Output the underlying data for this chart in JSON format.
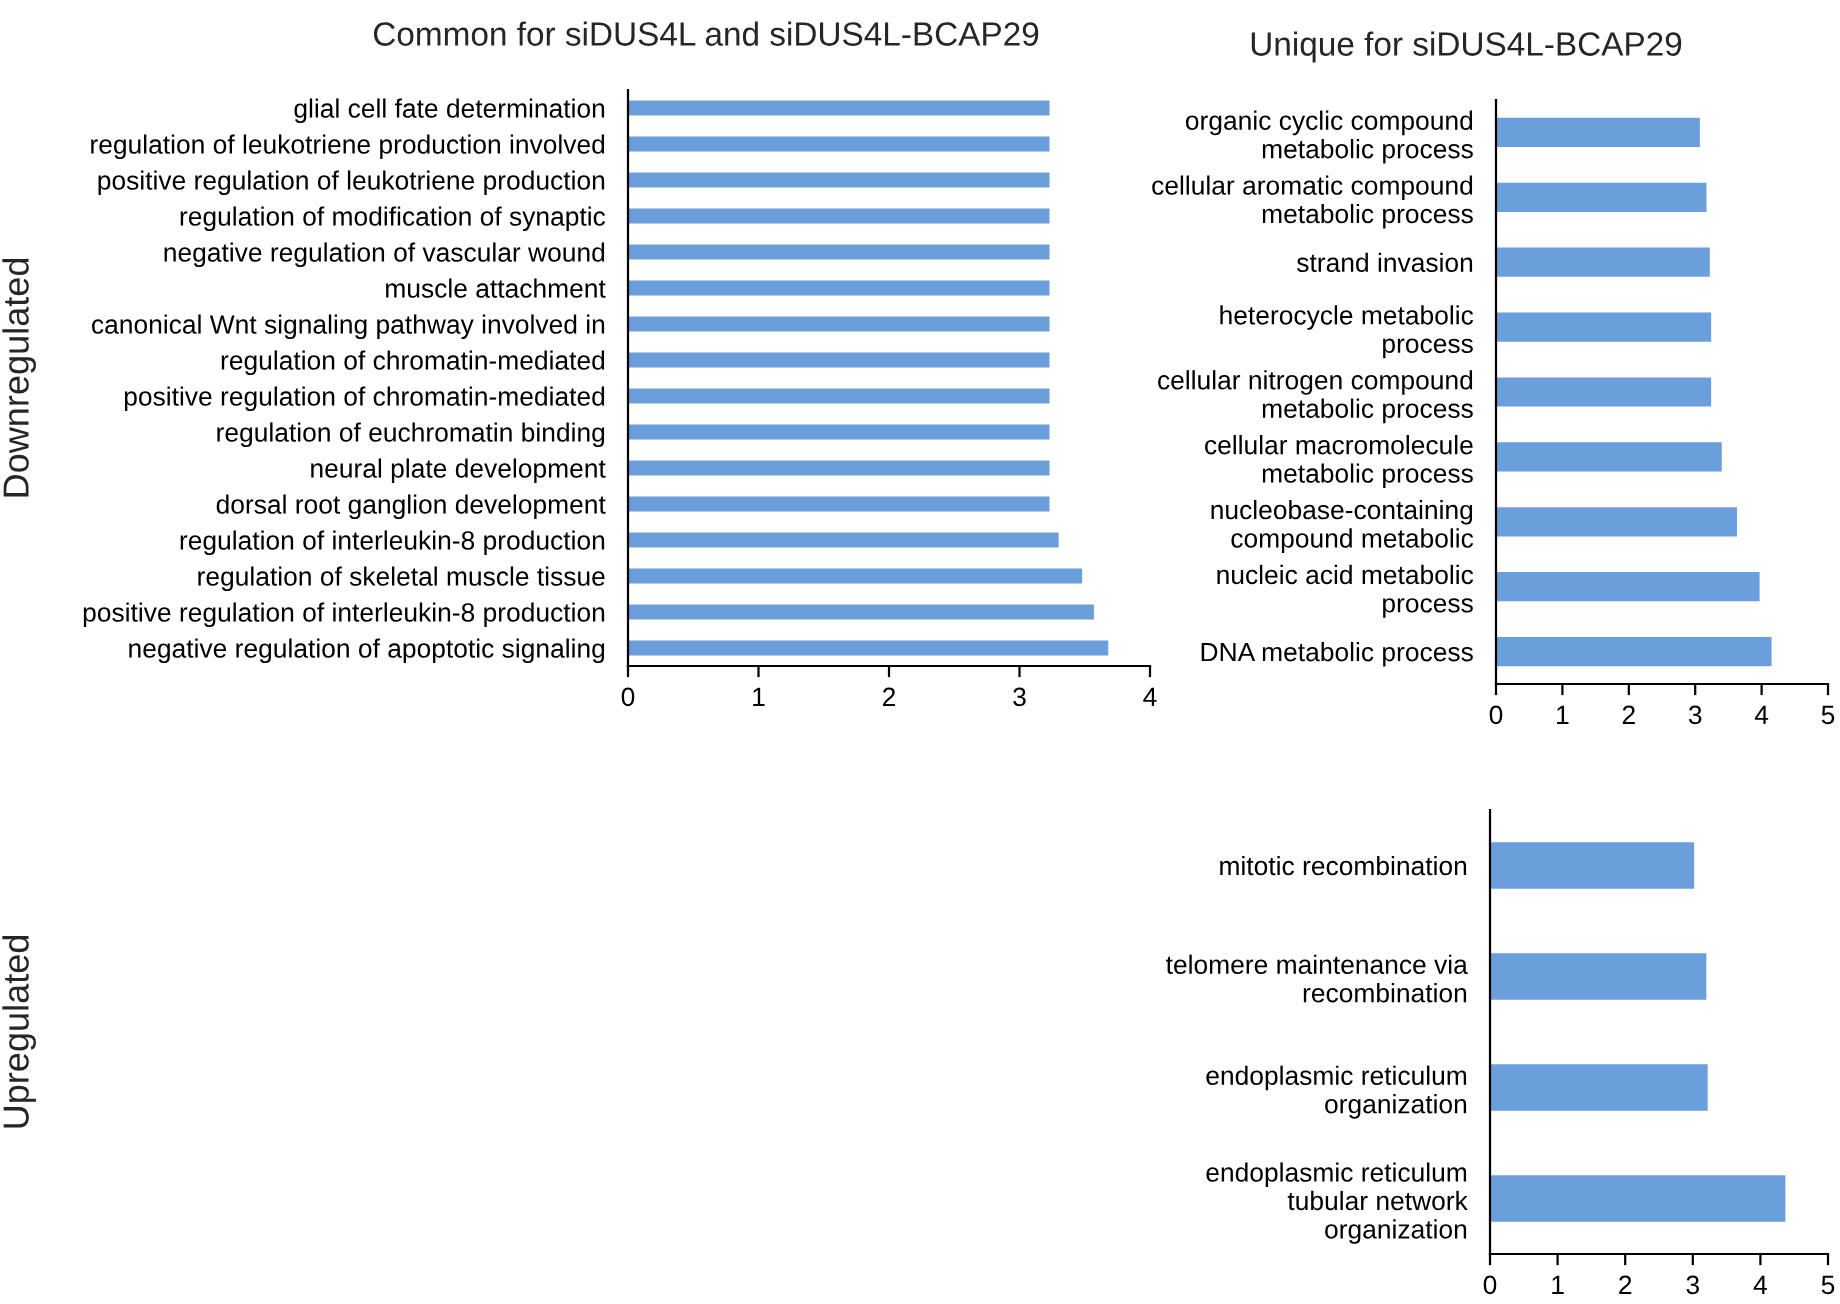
{
  "chart_data": [
    {
      "type": "bar",
      "orientation": "horizontal",
      "title": "Common for siDUS4L and siDUS4L-BCAP29",
      "ylabel": "Downregulated",
      "categories": [
        "glial cell fate determination",
        "regulation of leukotriene production involved",
        "positive regulation of leukotriene production",
        "regulation of modification of synaptic",
        "negative regulation of vascular wound",
        "muscle attachment",
        "canonical Wnt signaling pathway involved in",
        "regulation of chromatin-mediated",
        "positive regulation of chromatin-mediated",
        "regulation of euchromatin binding",
        "neural plate development",
        "dorsal root ganglion development",
        "regulation of interleukin-8 production",
        "regulation of skeletal muscle tissue",
        "positive regulation of interleukin-8 production",
        "negative regulation of apoptotic signaling"
      ],
      "values": [
        3.23,
        3.23,
        3.23,
        3.23,
        3.23,
        3.23,
        3.23,
        3.23,
        3.23,
        3.23,
        3.23,
        3.23,
        3.3,
        3.48,
        3.57,
        3.68
      ],
      "color": "#6a9fdc",
      "xlim": [
        0,
        4
      ],
      "xticks": [
        0,
        1,
        2,
        3,
        4
      ],
      "grid": false,
      "legend": false
    },
    {
      "type": "bar",
      "orientation": "horizontal",
      "title": "Unique for siDUS4L-BCAP29",
      "categories": [
        "organic cyclic compound\nmetabolic process",
        "cellular aromatic compound\nmetabolic process",
        "strand invasion",
        "heterocycle metabolic\nprocess",
        "cellular nitrogen compound\nmetabolic process",
        "cellular macromolecule\nmetabolic process",
        "nucleobase-containing\ncompound metabolic",
        "nucleic acid metabolic\nprocess",
        "DNA metabolic process"
      ],
      "values": [
        3.07,
        3.17,
        3.22,
        3.24,
        3.24,
        3.4,
        3.63,
        3.97,
        4.15
      ],
      "color": "#6a9fdc",
      "xlim": [
        0,
        5
      ],
      "xticks": [
        0,
        1,
        2,
        3,
        4,
        5
      ],
      "grid": false,
      "legend": false
    },
    {
      "type": "bar",
      "orientation": "horizontal",
      "ylabel": "Upregulated",
      "categories": [
        "mitotic recombination",
        "telomere maintenance via\nrecombination",
        "endoplasmic reticulum\norganization",
        "endoplasmic reticulum\ntubular network\norganization"
      ],
      "values": [
        3.02,
        3.2,
        3.22,
        4.37
      ],
      "color": "#6a9fdc",
      "xlim": [
        0,
        5
      ],
      "xticks": [
        0,
        1,
        2,
        3,
        4,
        5
      ],
      "grid": false,
      "legend": false
    }
  ]
}
